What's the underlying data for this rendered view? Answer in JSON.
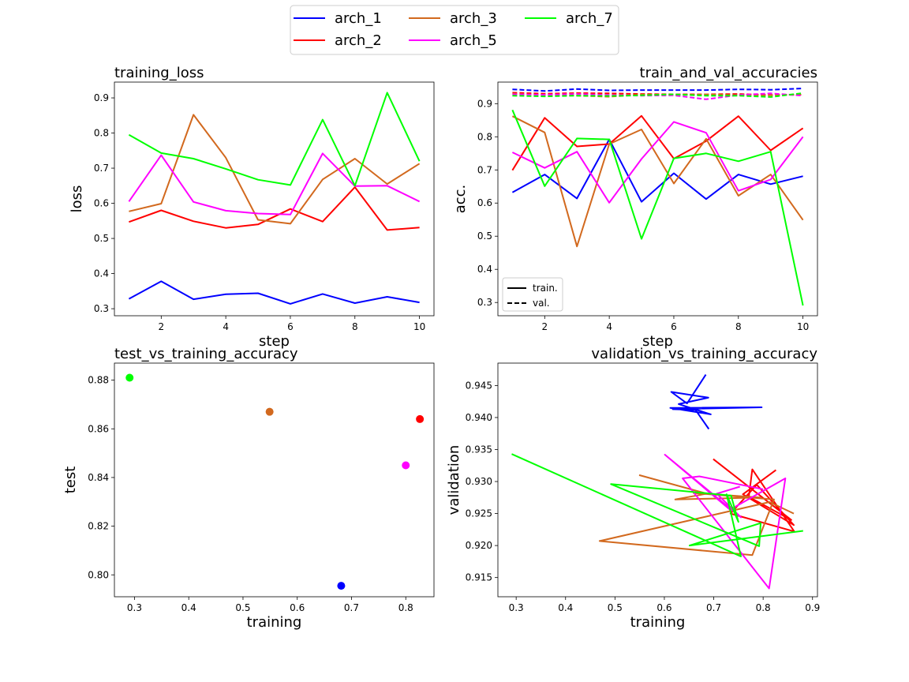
{
  "figure_legend": {
    "placement": "top-center",
    "entries": [
      {
        "name": "arch_1",
        "color": "#0000ff"
      },
      {
        "name": "arch_2",
        "color": "#ff0000"
      },
      {
        "name": "arch_3",
        "color": "#d2691e"
      },
      {
        "name": "arch_5",
        "color": "#ff00ff"
      },
      {
        "name": "arch_7",
        "color": "#00ff00"
      }
    ]
  },
  "chart_data": [
    {
      "type": "line",
      "title": "training_loss",
      "title_align": "left",
      "xlabel": "step",
      "ylabel": "loss",
      "xlim": [
        0.55,
        10.45
      ],
      "ylim": [
        0.28,
        0.945
      ],
      "xticks": [
        2,
        4,
        6,
        8,
        10
      ],
      "yticks": [
        0.3,
        0.4,
        0.5,
        0.6,
        0.7,
        0.8,
        0.9
      ],
      "x": [
        1,
        2,
        3,
        4,
        5,
        6,
        7,
        8,
        9,
        10
      ],
      "series": [
        {
          "name": "arch_1",
          "color": "#0000ff",
          "values": [
            0.328,
            0.378,
            0.327,
            0.341,
            0.344,
            0.314,
            0.342,
            0.316,
            0.334,
            0.318
          ]
        },
        {
          "name": "arch_2",
          "color": "#ff0000",
          "values": [
            0.547,
            0.58,
            0.549,
            0.53,
            0.54,
            0.584,
            0.548,
            0.646,
            0.524,
            0.531
          ]
        },
        {
          "name": "arch_3",
          "color": "#d2691e",
          "values": [
            0.577,
            0.599,
            0.852,
            0.73,
            0.553,
            0.542,
            0.668,
            0.727,
            0.655,
            0.713
          ]
        },
        {
          "name": "arch_5",
          "color": "#ff00ff",
          "values": [
            0.605,
            0.737,
            0.604,
            0.579,
            0.571,
            0.568,
            0.742,
            0.649,
            0.65,
            0.605
          ]
        },
        {
          "name": "arch_7",
          "color": "#00ff00",
          "values": [
            0.795,
            0.743,
            0.727,
            0.698,
            0.667,
            0.652,
            0.838,
            0.65,
            0.915,
            0.72
          ]
        }
      ]
    },
    {
      "type": "line",
      "title": "train_and_val_accuracies",
      "title_align": "right",
      "xlabel": "step",
      "ylabel": "acc.",
      "xlim": [
        0.55,
        10.45
      ],
      "ylim": [
        0.26,
        0.965
      ],
      "xticks": [
        2,
        4,
        6,
        8,
        10
      ],
      "yticks": [
        0.3,
        0.4,
        0.5,
        0.6,
        0.7,
        0.8,
        0.9
      ],
      "legend": {
        "placement": "lower-left",
        "entries": [
          {
            "name": "train.",
            "style": "solid"
          },
          {
            "name": "val.",
            "style": "dashed"
          }
        ]
      },
      "x": [
        1,
        2,
        3,
        4,
        5,
        6,
        7,
        8,
        9,
        10
      ],
      "series": [
        {
          "name": "arch_1",
          "color": "#0000ff",
          "style": "solid",
          "values": [
            0.632,
            0.686,
            0.614,
            0.792,
            0.604,
            0.69,
            0.612,
            0.686,
            0.657,
            0.681
          ]
        },
        {
          "name": "arch_2",
          "color": "#ff0000",
          "style": "solid",
          "values": [
            0.699,
            0.857,
            0.771,
            0.778,
            0.863,
            0.734,
            0.787,
            0.862,
            0.759,
            0.826
          ]
        },
        {
          "name": "arch_3",
          "color": "#d2691e",
          "style": "solid",
          "values": [
            0.862,
            0.813,
            0.469,
            0.778,
            0.822,
            0.659,
            0.794,
            0.622,
            0.686,
            0.549
          ]
        },
        {
          "name": "arch_5",
          "color": "#ff00ff",
          "style": "solid",
          "values": [
            0.753,
            0.706,
            0.755,
            0.601,
            0.733,
            0.845,
            0.812,
            0.637,
            0.671,
            0.8
          ]
        },
        {
          "name": "arch_7",
          "color": "#00ff00",
          "style": "solid",
          "values": [
            0.881,
            0.651,
            0.795,
            0.792,
            0.492,
            0.735,
            0.75,
            0.726,
            0.755,
            0.291
          ]
        },
        {
          "name": "arch_1",
          "color": "#0000ff",
          "style": "dashed",
          "values": [
            0.943,
            0.938,
            0.944,
            0.94,
            0.941,
            0.941,
            0.941,
            0.943,
            0.942,
            0.946
          ]
        },
        {
          "name": "arch_2",
          "color": "#ff0000",
          "style": "dashed",
          "values": [
            0.933,
            0.93,
            0.932,
            0.931,
            0.929,
            0.928,
            0.928,
            0.929,
            0.926,
            0.927
          ]
        },
        {
          "name": "arch_3",
          "color": "#d2691e",
          "style": "dashed",
          "values": [
            0.93,
            0.926,
            0.924,
            0.921,
            0.927,
            0.926,
            0.928,
            0.925,
            0.925,
            0.928
          ]
        },
        {
          "name": "arch_5",
          "color": "#ff00ff",
          "style": "dashed",
          "values": [
            0.928,
            0.927,
            0.929,
            0.926,
            0.924,
            0.925,
            0.913,
            0.926,
            0.931,
            0.924
          ]
        },
        {
          "name": "arch_7",
          "color": "#00ff00",
          "style": "dashed",
          "values": [
            0.924,
            0.922,
            0.924,
            0.923,
            0.925,
            0.928,
            0.924,
            0.924,
            0.92,
            0.932
          ]
        }
      ]
    },
    {
      "type": "scatter",
      "title": "test_vs_training_accuracy",
      "title_align": "left",
      "xlabel": "training",
      "ylabel": "test",
      "xlim": [
        0.263,
        0.852
      ],
      "ylim": [
        0.791,
        0.887
      ],
      "xticks": [
        0.3,
        0.4,
        0.5,
        0.6,
        0.7,
        0.8
      ],
      "yticks": [
        0.8,
        0.82,
        0.84,
        0.86,
        0.88
      ],
      "ytick_labels": [
        "0.80",
        "0.82",
        "0.84",
        "0.86",
        "0.88"
      ],
      "points": [
        {
          "name": "arch_1",
          "color": "#0000ff",
          "x": 0.681,
          "y": 0.7955
        },
        {
          "name": "arch_2",
          "color": "#ff0000",
          "x": 0.826,
          "y": 0.864
        },
        {
          "name": "arch_3",
          "color": "#d2691e",
          "x": 0.549,
          "y": 0.867
        },
        {
          "name": "arch_5",
          "color": "#ff00ff",
          "x": 0.8,
          "y": 0.845
        },
        {
          "name": "arch_7",
          "color": "#00ff00",
          "x": 0.291,
          "y": 0.881
        }
      ]
    },
    {
      "type": "line",
      "title": "validation_vs_training_accuracy",
      "title_align": "right",
      "xlabel": "training",
      "ylabel": "validation",
      "xlim": [
        0.263,
        0.91
      ],
      "ylim": [
        0.912,
        0.9485
      ],
      "xticks": [
        0.3,
        0.4,
        0.5,
        0.6,
        0.7,
        0.8,
        0.9
      ],
      "yticks": [
        0.915,
        0.92,
        0.925,
        0.93,
        0.935,
        0.94,
        0.945
      ],
      "ytick_labels": [
        "0.915",
        "0.920",
        "0.925",
        "0.930",
        "0.935",
        "0.940",
        "0.945"
      ],
      "series": [
        {
          "name": "arch_1",
          "color": "#0000ff",
          "x": [
            0.684,
            0.646,
            0.614,
            0.689,
            0.629,
            0.694,
            0.612,
            0.797,
            0.617,
            0.663,
            0.69
          ],
          "y": [
            0.9467,
            0.9422,
            0.944,
            0.9431,
            0.9421,
            0.9405,
            0.9415,
            0.9416,
            0.9413,
            0.9412,
            0.9382
          ]
        },
        {
          "name": "arch_2",
          "color": "#ff0000",
          "x": [
            0.699,
            0.857,
            0.771,
            0.778,
            0.863,
            0.734,
            0.787,
            0.862,
            0.759,
            0.826
          ],
          "y": [
            0.9335,
            0.924,
            0.9276,
            0.9319,
            0.9222,
            0.925,
            0.9295,
            0.9232,
            0.928,
            0.9318
          ]
        },
        {
          "name": "arch_3",
          "color": "#d2691e",
          "x": [
            0.862,
            0.813,
            0.469,
            0.778,
            0.822,
            0.659,
            0.794,
            0.622,
            0.686,
            0.549
          ],
          "y": [
            0.925,
            0.9268,
            0.9207,
            0.9185,
            0.9272,
            0.9282,
            0.9275,
            0.9272,
            0.9281,
            0.931
          ]
        },
        {
          "name": "arch_5",
          "color": "#ff00ff",
          "x": [
            0.753,
            0.706,
            0.755,
            0.601,
            0.733,
            0.845,
            0.812,
            0.637,
            0.671,
            0.8
          ],
          "y": [
            0.9292,
            0.9281,
            0.9244,
            0.9342,
            0.9256,
            0.9305,
            0.9133,
            0.9305,
            0.9308,
            0.9288
          ]
        },
        {
          "name": "arch_7",
          "color": "#00ff00",
          "x": [
            0.881,
            0.651,
            0.795,
            0.792,
            0.492,
            0.735,
            0.75,
            0.726,
            0.755,
            0.291
          ],
          "y": [
            0.9223,
            0.92,
            0.9235,
            0.9199,
            0.9296,
            0.9278,
            0.9237,
            0.928,
            0.9183,
            0.9343
          ]
        }
      ]
    }
  ]
}
